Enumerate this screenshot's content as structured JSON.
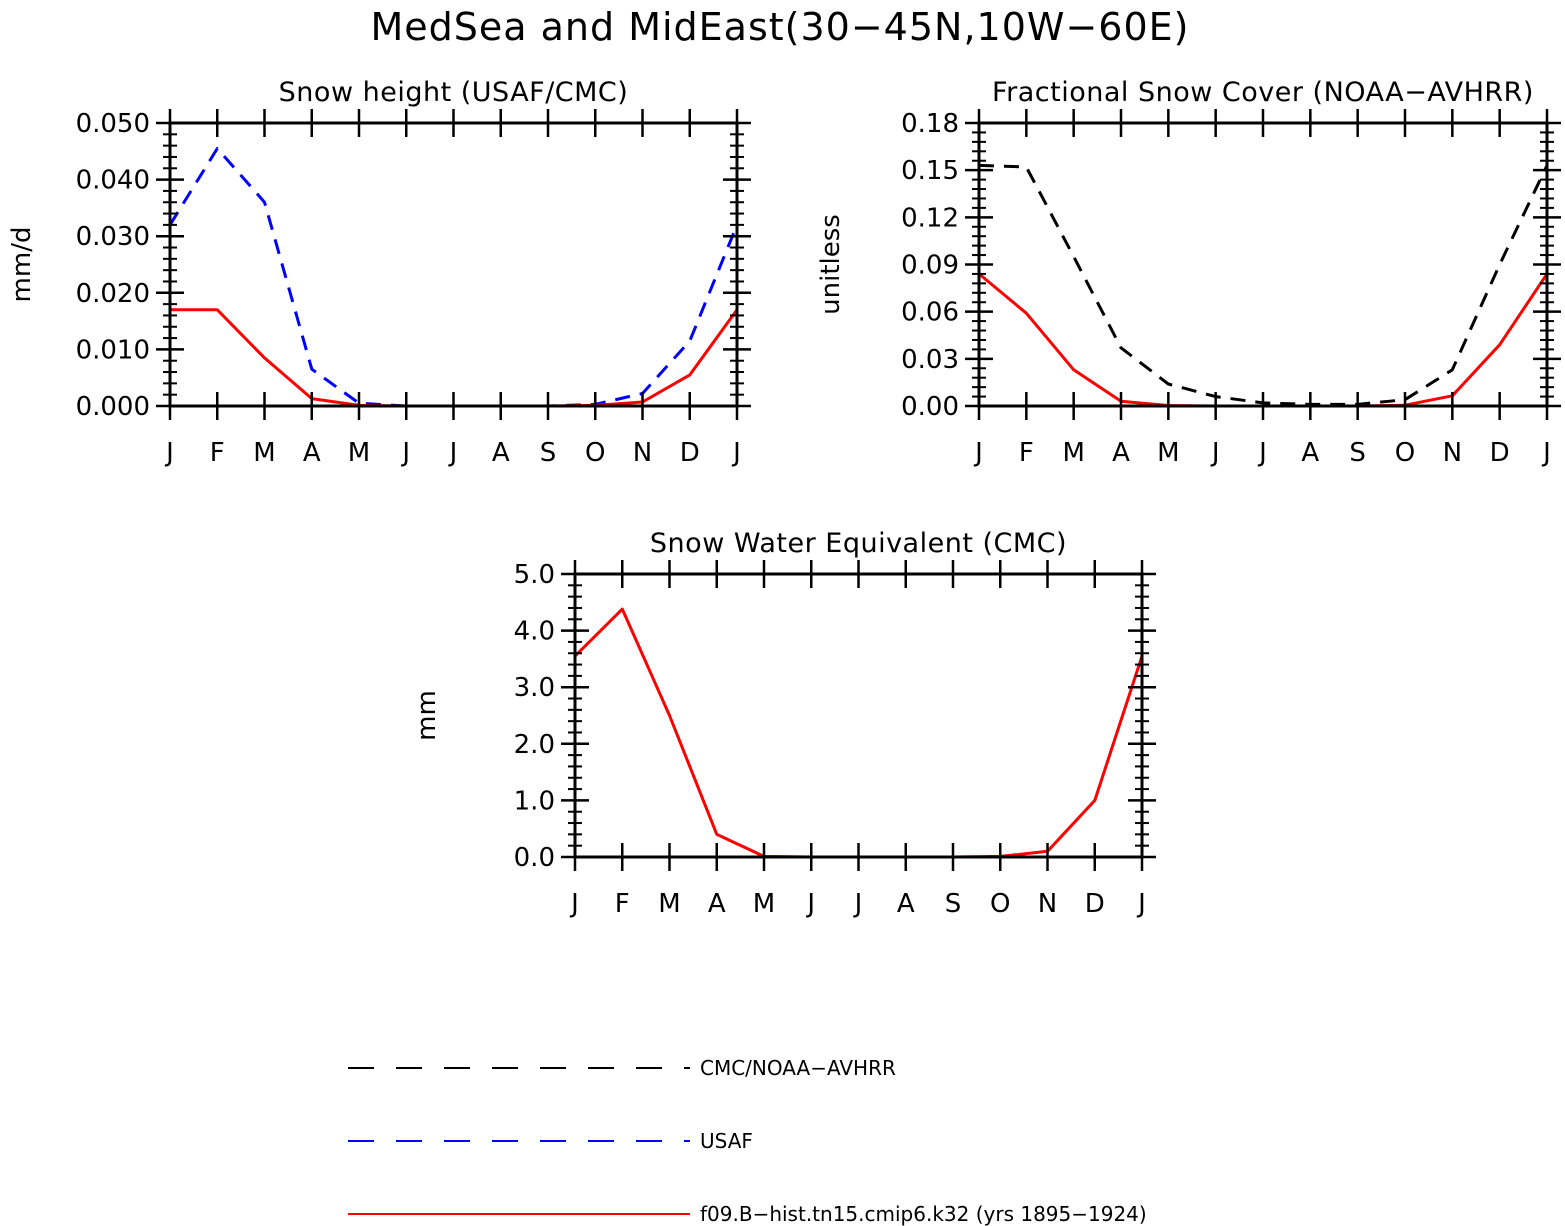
{
  "figure": {
    "title": "MedSea and MidEast(30−45N,10W−60E)"
  },
  "colors": {
    "cmc_noaa": "#000000",
    "usaf": "#0000ff",
    "model": "#ff0000",
    "axis": "#000000"
  },
  "legend": {
    "items": [
      {
        "label": "CMC/NOAA−AVHRR",
        "color": "#000000",
        "dash": "dashed"
      },
      {
        "label": "USAF",
        "color": "#0000ff",
        "dash": "dashed"
      },
      {
        "label": "f09.B−hist.tn15.cmip6.k32 (yrs 1895−1924)",
        "color": "#ff0000",
        "dash": "solid"
      }
    ]
  },
  "chart_data": [
    {
      "type": "line",
      "title": "Snow height (USAF/CMC)",
      "xlabel": "",
      "ylabel": "mm/d",
      "categories": [
        "J",
        "F",
        "M",
        "A",
        "M",
        "J",
        "J",
        "A",
        "S",
        "O",
        "N",
        "D",
        "J"
      ],
      "ylim": [
        0,
        0.05
      ],
      "yticks": [
        "0.000",
        "0.010",
        "0.020",
        "0.030",
        "0.040",
        "0.050"
      ],
      "series": [
        {
          "name": "CMC/NOAA−AVHRR",
          "color": "#000000",
          "dash": "dashed",
          "values": [
            0,
            0,
            0,
            0,
            0,
            0,
            0,
            0,
            0,
            0,
            0,
            0,
            0
          ]
        },
        {
          "name": "USAF",
          "color": "#0000ff",
          "dash": "dashed",
          "values": [
            0.032,
            0.0455,
            0.036,
            0.0065,
            0.0005,
            0,
            0,
            0,
            0,
            0.0003,
            0.0022,
            0.0115,
            0.032
          ]
        },
        {
          "name": "f09.B−hist.tn15.cmip6.k32 (yrs 1895−1924)",
          "color": "#ff0000",
          "dash": "solid",
          "values": [
            0.017,
            0.017,
            0.0085,
            0.0013,
            0.0001,
            0,
            0,
            0,
            0,
            0.0001,
            0.0007,
            0.0055,
            0.017
          ]
        }
      ]
    },
    {
      "type": "line",
      "title": "Fractional Snow Cover (NOAA−AVHRR)",
      "xlabel": "",
      "ylabel": "unitless",
      "categories": [
        "J",
        "F",
        "M",
        "A",
        "M",
        "J",
        "J",
        "A",
        "S",
        "O",
        "N",
        "D",
        "J"
      ],
      "ylim": [
        0,
        0.18
      ],
      "yticks": [
        "0.00",
        "0.03",
        "0.06",
        "0.09",
        "0.12",
        "0.15",
        "0.18"
      ],
      "series": [
        {
          "name": "CMC/NOAA−AVHRR",
          "color": "#000000",
          "dash": "dashed",
          "values": [
            0.153,
            0.152,
            0.095,
            0.037,
            0.014,
            0.006,
            0.002,
            0.001,
            0.001,
            0.004,
            0.023,
            0.09,
            0.153
          ]
        },
        {
          "name": "f09.B−hist.tn15.cmip6.k32 (yrs 1895−1924)",
          "color": "#ff0000",
          "dash": "solid",
          "values": [
            0.084,
            0.059,
            0.023,
            0.003,
            0.0003,
            0,
            0,
            0,
            0,
            0.0005,
            0.0065,
            0.039,
            0.084
          ]
        }
      ]
    },
    {
      "type": "line",
      "title": "Snow Water Equivalent (CMC)",
      "xlabel": "",
      "ylabel": "mm",
      "categories": [
        "J",
        "F",
        "M",
        "A",
        "M",
        "J",
        "J",
        "A",
        "S",
        "O",
        "N",
        "D",
        "J"
      ],
      "ylim": [
        0,
        5.0
      ],
      "yticks": [
        "0.0",
        "1.0",
        "2.0",
        "3.0",
        "4.0",
        "5.0"
      ],
      "series": [
        {
          "name": "CMC/NOAA−AVHRR",
          "color": "#000000",
          "dash": "solid",
          "values": [
            0,
            0,
            0,
            0,
            0,
            0,
            0,
            0,
            0,
            0,
            0,
            0,
            0
          ]
        },
        {
          "name": "f09.B−hist.tn15.cmip6.k32 (yrs 1895−1924)",
          "color": "#ff0000",
          "dash": "solid",
          "values": [
            3.55,
            4.38,
            2.5,
            0.4,
            0.01,
            0,
            0,
            0,
            0,
            0.01,
            0.1,
            1.0,
            3.55
          ]
        }
      ]
    }
  ]
}
